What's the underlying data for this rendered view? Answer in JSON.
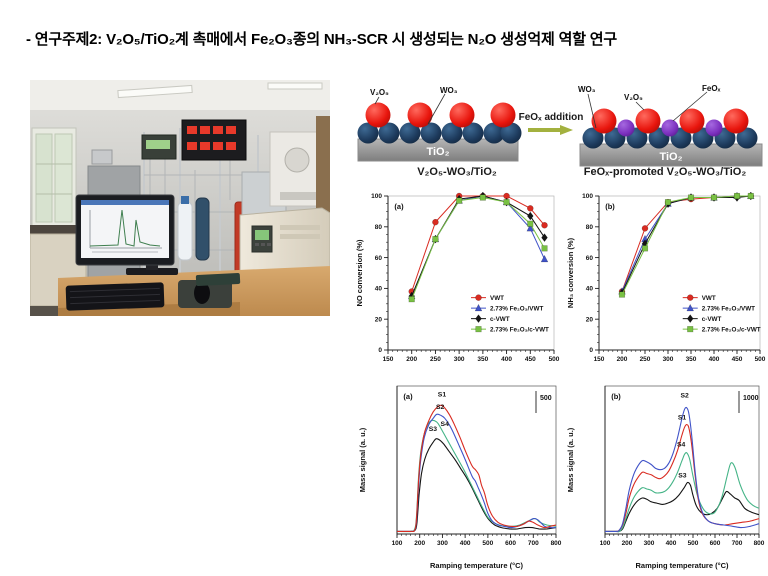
{
  "title": "- 연구주제2: V₂O₅/TiO₂계 촉매에서 Fe₂O₃종의 NH₃-SCR 시 생성되는 N₂O 생성억제 역할 연구",
  "photo": {
    "equipment_label": "HPR20"
  },
  "schematics": {
    "left": {
      "labels": [
        "V₂O₅",
        "WO₃"
      ],
      "substrate": "TiO₂",
      "caption": "V₂O₅-WO₃/TiO₂"
    },
    "arrow_label": "FeOₓ addition",
    "right": {
      "labels": [
        "WO₃",
        "V₂O₅",
        "FeOₓ"
      ],
      "substrate": "TiO₂",
      "caption": "FeOₓ-promoted V₂O₅-WO₃/TiO₂"
    }
  },
  "colors": {
    "series_red": "#d92b21",
    "series_blue": "#4053c8",
    "series_black": "#141414",
    "series_green": "#79c143",
    "series_teal": "#45b487",
    "arrow_green": "#a3b13f",
    "sphere_red": "#e8150d",
    "sphere_navy": "#1d3a5c",
    "sphere_purple": "#7b2fbe",
    "substrate_gray": "#909090"
  },
  "chart_data": [
    {
      "id": "no_conversion",
      "type": "line",
      "panel_label": "(a)",
      "ylabel": "NO conversion (%)",
      "xlim": [
        150,
        500
      ],
      "ylim": [
        0,
        100
      ],
      "xticks": [
        150,
        200,
        250,
        300,
        350,
        400,
        450,
        500
      ],
      "yticks": [
        0,
        20,
        40,
        60,
        80,
        100
      ],
      "minor_x": 10,
      "minor_y": 5,
      "x": [
        200,
        250,
        300,
        350,
        400,
        450,
        480
      ],
      "series": [
        {
          "name": "VWT",
          "color": "#d92b21",
          "marker": "circle",
          "values": [
            38,
            83,
            100,
            100,
            100,
            92,
            81
          ]
        },
        {
          "name": "2.73% Fe₂O₃/VWT",
          "color": "#4053c8",
          "marker": "triangle",
          "values": [
            35,
            72,
            97,
            100,
            96,
            79,
            59
          ]
        },
        {
          "name": "c-VWT",
          "color": "#141414",
          "marker": "diamond",
          "values": [
            35,
            72,
            98,
            100,
            96,
            87,
            73
          ]
        },
        {
          "name": "2.73% Fe₂O₃/c-VWT",
          "color": "#79c143",
          "marker": "square",
          "values": [
            33,
            72,
            97,
            99,
            96,
            82,
            66
          ]
        }
      ],
      "legend": {
        "fx": 0.5,
        "fy": 0.66
      }
    },
    {
      "id": "nh3_conversion",
      "type": "line",
      "panel_label": "(b)",
      "ylabel": "NH₃ conversion (%)",
      "xlim": [
        150,
        500
      ],
      "ylim": [
        0,
        100
      ],
      "xticks": [
        150,
        200,
        250,
        300,
        350,
        400,
        450,
        500
      ],
      "yticks": [
        0,
        20,
        40,
        60,
        80,
        100
      ],
      "minor_x": 10,
      "minor_y": 5,
      "x": [
        200,
        250,
        300,
        350,
        400,
        450,
        480
      ],
      "series": [
        {
          "name": "VWT",
          "color": "#d92b21",
          "marker": "circle",
          "values": [
            38,
            79,
            96,
            98,
            99,
            100,
            100
          ]
        },
        {
          "name": "2.73% Fe₂O₃/VWT",
          "color": "#4053c8",
          "marker": "triangle",
          "values": [
            38,
            72,
            95,
            99,
            99,
            100,
            100
          ]
        },
        {
          "name": "c-VWT",
          "color": "#141414",
          "marker": "diamond",
          "values": [
            37,
            69,
            95,
            99,
            99,
            99,
            100
          ]
        },
        {
          "name": "2.73% Fe₂O₃/c-VWT",
          "color": "#79c143",
          "marker": "square",
          "values": [
            36,
            66,
            96,
            99,
            99,
            100,
            100
          ]
        }
      ],
      "legend": {
        "fx": 0.52,
        "fy": 0.66
      }
    },
    {
      "id": "mass_signal_a",
      "type": "line-smooth",
      "panel_label": "(a)",
      "ylabel": "Mass signal (a. u.)",
      "xlabel": "Ramping temperature (°C)",
      "xlim": [
        100,
        800
      ],
      "ylim": [
        0,
        115
      ],
      "xticks": [
        100,
        200,
        300,
        400,
        500,
        600,
        700,
        800
      ],
      "yticks": [],
      "minor_x": 20,
      "scale_bar": "500",
      "series": [
        {
          "name": "S3",
          "color": "#141414",
          "x": [
            100,
            160,
            180,
            188,
            197,
            208,
            222,
            240,
            258,
            272,
            288,
            305,
            330,
            355,
            380,
            405,
            430,
            455,
            480,
            505,
            530,
            560,
            595,
            630,
            665,
            695,
            725,
            760,
            800
          ],
          "y": [
            2,
            2,
            3,
            9,
            30,
            47,
            58,
            66,
            71,
            74,
            73,
            70,
            64,
            58,
            51,
            44,
            36,
            27,
            18,
            11,
            7,
            5,
            4,
            4,
            5,
            5,
            4,
            4,
            5
          ]
        },
        {
          "name": "S4",
          "color": "#45b487",
          "x": [
            100,
            160,
            178,
            186,
            195,
            205,
            220,
            235,
            250,
            265,
            280,
            300,
            325,
            350,
            375,
            400,
            425,
            450,
            475,
            500,
            525,
            550,
            580,
            610,
            640,
            665,
            690,
            710,
            730,
            760,
            800
          ],
          "y": [
            2,
            2,
            4,
            14,
            45,
            64,
            78,
            85,
            88,
            88,
            86,
            80,
            72,
            64,
            56,
            48,
            39,
            30,
            21,
            13,
            9,
            7,
            6,
            6,
            7,
            9,
            11,
            12,
            9,
            7,
            6
          ]
        },
        {
          "name": "S2",
          "color": "#4053c8",
          "x": [
            100,
            160,
            178,
            186,
            195,
            205,
            220,
            240,
            260,
            275,
            295,
            310,
            330,
            350,
            375,
            400,
            430,
            445,
            460,
            472,
            485,
            500,
            520,
            545,
            570,
            600,
            630,
            660,
            680,
            700,
            720,
            750,
            775,
            800
          ],
          "y": [
            2,
            2,
            3,
            10,
            38,
            58,
            75,
            85,
            90,
            93,
            92,
            90,
            85,
            78,
            68,
            58,
            45,
            41,
            35,
            30,
            24,
            16,
            10,
            7,
            6,
            5,
            6,
            8,
            10,
            12,
            11,
            6,
            5,
            5
          ]
        },
        {
          "name": "S1",
          "color": "#d92b21",
          "x": [
            100,
            160,
            178,
            186,
            195,
            205,
            220,
            240,
            260,
            280,
            295,
            310,
            330,
            350,
            375,
            400,
            430,
            445,
            460,
            472,
            485,
            500,
            520,
            545,
            570,
            600,
            630,
            660,
            680,
            700,
            720,
            750,
            775,
            800
          ],
          "y": [
            2,
            2,
            3,
            12,
            42,
            62,
            78,
            88,
            95,
            99,
            100,
            98,
            93,
            86,
            76,
            65,
            53,
            50,
            46,
            38,
            32,
            22,
            14,
            9,
            7,
            6,
            6,
            8,
            10,
            9,
            7,
            5,
            6,
            7
          ]
        }
      ],
      "annotations": [
        {
          "text": "S1",
          "x": 298,
          "y": 107
        },
        {
          "text": "S2",
          "x": 290,
          "y": 97
        },
        {
          "text": "S4",
          "x": 310,
          "y": 84
        },
        {
          "text": "S3",
          "x": 258,
          "y": 80
        }
      ]
    },
    {
      "id": "mass_signal_b",
      "type": "line-smooth",
      "panel_label": "(b)",
      "ylabel": "Mass signal (a. u.)",
      "xlabel": "Ramping temperature (°C)",
      "xlim": [
        100,
        800
      ],
      "ylim": [
        0,
        115
      ],
      "xticks": [
        100,
        200,
        300,
        400,
        500,
        600,
        700,
        800
      ],
      "yticks": [],
      "minor_x": 20,
      "scale_bar": "1000",
      "series": [
        {
          "name": "S3",
          "color": "#141414",
          "x": [
            100,
            150,
            165,
            180,
            195,
            210,
            230,
            250,
            270,
            290,
            310,
            335,
            360,
            385,
            410,
            435,
            460,
            475,
            488,
            500,
            515,
            535,
            560,
            585,
            610,
            635,
            652,
            670,
            690,
            710,
            735,
            765,
            800
          ],
          "y": [
            2,
            2,
            2,
            4,
            10,
            16,
            22,
            26,
            28,
            27,
            25,
            24,
            23,
            24,
            26,
            30,
            36,
            40,
            38,
            30,
            22,
            17,
            15,
            16,
            20,
            28,
            33,
            31,
            28,
            26,
            20,
            17,
            15
          ]
        },
        {
          "name": "S4",
          "color": "#45b487",
          "x": [
            100,
            150,
            165,
            180,
            195,
            210,
            230,
            250,
            270,
            290,
            310,
            330,
            350,
            370,
            390,
            410,
            430,
            450,
            462,
            472,
            485,
            500,
            520,
            545,
            570,
            600,
            630,
            655,
            672,
            690,
            715,
            745,
            775,
            800
          ],
          "y": [
            2,
            2,
            2,
            5,
            12,
            20,
            28,
            33,
            36,
            35,
            34,
            32,
            32,
            33,
            36,
            41,
            48,
            57,
            62,
            63,
            58,
            45,
            30,
            20,
            16,
            17,
            28,
            45,
            55,
            52,
            38,
            27,
            22,
            20
          ]
        },
        {
          "name": "S1",
          "color": "#d92b21",
          "x": [
            100,
            150,
            165,
            180,
            195,
            210,
            230,
            250,
            270,
            290,
            310,
            330,
            350,
            370,
            390,
            410,
            430,
            450,
            462,
            472,
            482,
            495,
            510,
            525,
            545,
            570,
            600,
            640,
            680,
            720,
            760,
            800
          ],
          "y": [
            2,
            2,
            3,
            7,
            16,
            28,
            38,
            44,
            48,
            47,
            46,
            44,
            43,
            45,
            49,
            56,
            65,
            77,
            83,
            85,
            82,
            68,
            45,
            26,
            15,
            10,
            8,
            7,
            8,
            9,
            10,
            12
          ]
        },
        {
          "name": "S2",
          "color": "#4053c8",
          "x": [
            100,
            150,
            165,
            180,
            195,
            210,
            230,
            250,
            270,
            290,
            310,
            330,
            350,
            370,
            390,
            410,
            430,
            450,
            462,
            472,
            482,
            495,
            510,
            525,
            545,
            570,
            600,
            640,
            680,
            720,
            760,
            800
          ],
          "y": [
            2,
            2,
            3,
            8,
            20,
            34,
            46,
            53,
            57,
            56,
            54,
            51,
            50,
            51,
            55,
            63,
            75,
            90,
            97,
            98,
            93,
            75,
            48,
            28,
            16,
            10,
            8,
            7,
            6,
            5,
            6,
            8
          ]
        }
      ],
      "annotations": [
        {
          "text": "S2",
          "x": 462,
          "y": 106
        },
        {
          "text": "S1",
          "x": 450,
          "y": 89
        },
        {
          "text": "S4",
          "x": 446,
          "y": 68
        },
        {
          "text": "S3",
          "x": 452,
          "y": 44
        }
      ]
    }
  ]
}
